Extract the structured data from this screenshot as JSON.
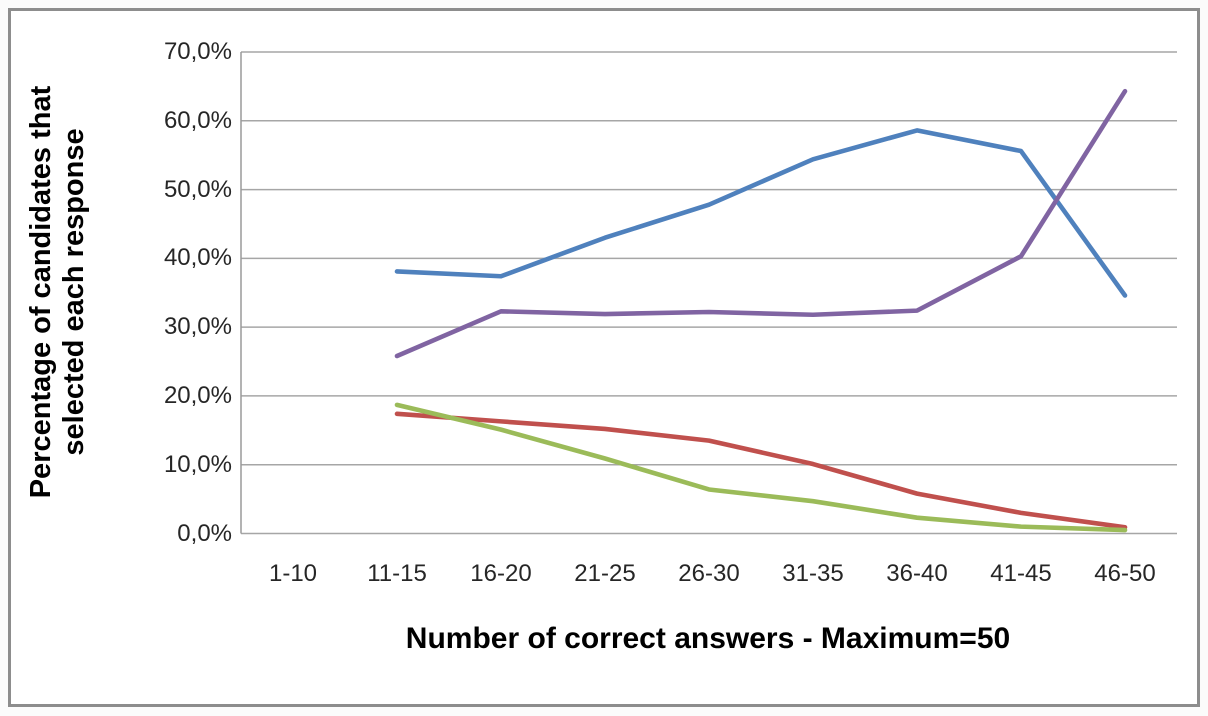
{
  "figure": {
    "frame_color": "#8d8d8d",
    "background": "#ffffff",
    "gridline_color": "#a6a6a6",
    "axis_line_color": "#9a9a9a"
  },
  "chart_data": {
    "type": "line",
    "xlabel": "Number of correct answers - Maximum=50",
    "ylabel": "Percentage of candidates that selected each response",
    "ylabel_lines": [
      "Percentage of candidates that",
      "selected each response"
    ],
    "categories": [
      "1-10",
      "11-15",
      "16-20",
      "21-25",
      "26-30",
      "31-35",
      "36-40",
      "41-45",
      "46-50"
    ],
    "ylim": [
      0,
      70
    ],
    "grid": "horizontal",
    "legend": "none",
    "y_ticks": [
      {
        "value": 70,
        "label": "70,0%"
      },
      {
        "value": 60,
        "label": "60,0%"
      },
      {
        "value": 50,
        "label": "50,0%"
      },
      {
        "value": 40,
        "label": "40,0%"
      },
      {
        "value": 30,
        "label": "30,0%"
      },
      {
        "value": 20,
        "label": "20,0%"
      },
      {
        "value": 10,
        "label": "10,0%"
      },
      {
        "value": 0,
        "label": "0,0%"
      }
    ],
    "series": [
      {
        "name": "blue",
        "color": "#4f81bd",
        "values": [
          null,
          38.1,
          37.4,
          43.0,
          47.8,
          54.4,
          58.6,
          55.6,
          34.6
        ]
      },
      {
        "name": "red",
        "color": "#c0504d",
        "values": [
          null,
          17.4,
          16.3,
          15.2,
          13.5,
          10.1,
          5.8,
          3.0,
          0.9
        ]
      },
      {
        "name": "green",
        "color": "#9bbb59",
        "values": [
          null,
          18.7,
          15.1,
          10.9,
          6.4,
          4.7,
          2.3,
          1.0,
          0.5
        ]
      },
      {
        "name": "purple",
        "color": "#8064a2",
        "values": [
          null,
          25.8,
          32.3,
          31.9,
          32.2,
          31.8,
          32.4,
          40.3,
          64.3
        ]
      }
    ]
  }
}
